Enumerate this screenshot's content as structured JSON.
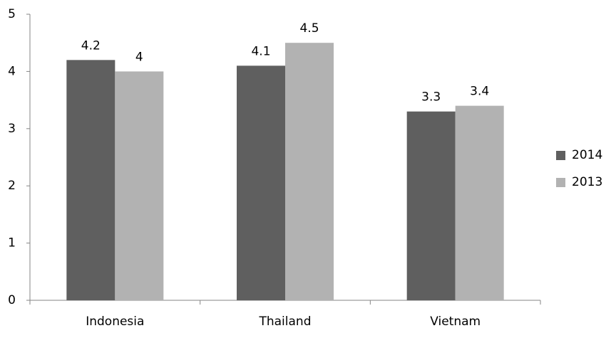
{
  "chart_data": {
    "type": "bar",
    "categories": [
      "Indonesia",
      "Thailand",
      "Vietnam"
    ],
    "series": [
      {
        "name": "2014",
        "color": "#5f5f5f",
        "values": [
          4.2,
          4.1,
          3.3
        ]
      },
      {
        "name": "2013",
        "color": "#b2b2b2",
        "values": [
          4,
          4.5,
          3.4
        ]
      }
    ],
    "ylim": [
      0,
      5
    ],
    "yticks": [
      0,
      1,
      2,
      3,
      4,
      5
    ],
    "grid": false,
    "legend": "right"
  }
}
